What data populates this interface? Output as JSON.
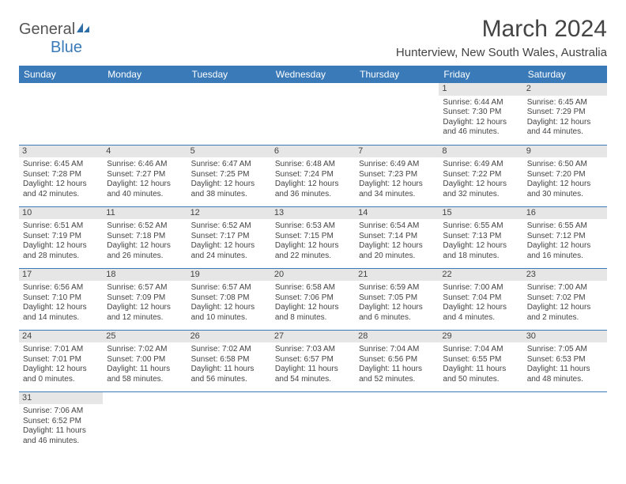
{
  "logo": {
    "part1": "General",
    "part2": "Blue"
  },
  "title": "March 2024",
  "location": "Hunterview, New South Wales, Australia",
  "colors": {
    "header_bg": "#3a7ab8",
    "header_fg": "#ffffff",
    "daynum_bg": "#e6e6e6",
    "border": "#3a7ab8"
  },
  "day_headers": [
    "Sunday",
    "Monday",
    "Tuesday",
    "Wednesday",
    "Thursday",
    "Friday",
    "Saturday"
  ],
  "weeks": [
    [
      null,
      null,
      null,
      null,
      null,
      {
        "num": "1",
        "sunrise": "Sunrise: 6:44 AM",
        "sunset": "Sunset: 7:30 PM",
        "daylight": "Daylight: 12 hours and 46 minutes."
      },
      {
        "num": "2",
        "sunrise": "Sunrise: 6:45 AM",
        "sunset": "Sunset: 7:29 PM",
        "daylight": "Daylight: 12 hours and 44 minutes."
      }
    ],
    [
      {
        "num": "3",
        "sunrise": "Sunrise: 6:45 AM",
        "sunset": "Sunset: 7:28 PM",
        "daylight": "Daylight: 12 hours and 42 minutes."
      },
      {
        "num": "4",
        "sunrise": "Sunrise: 6:46 AM",
        "sunset": "Sunset: 7:27 PM",
        "daylight": "Daylight: 12 hours and 40 minutes."
      },
      {
        "num": "5",
        "sunrise": "Sunrise: 6:47 AM",
        "sunset": "Sunset: 7:25 PM",
        "daylight": "Daylight: 12 hours and 38 minutes."
      },
      {
        "num": "6",
        "sunrise": "Sunrise: 6:48 AM",
        "sunset": "Sunset: 7:24 PM",
        "daylight": "Daylight: 12 hours and 36 minutes."
      },
      {
        "num": "7",
        "sunrise": "Sunrise: 6:49 AM",
        "sunset": "Sunset: 7:23 PM",
        "daylight": "Daylight: 12 hours and 34 minutes."
      },
      {
        "num": "8",
        "sunrise": "Sunrise: 6:49 AM",
        "sunset": "Sunset: 7:22 PM",
        "daylight": "Daylight: 12 hours and 32 minutes."
      },
      {
        "num": "9",
        "sunrise": "Sunrise: 6:50 AM",
        "sunset": "Sunset: 7:20 PM",
        "daylight": "Daylight: 12 hours and 30 minutes."
      }
    ],
    [
      {
        "num": "10",
        "sunrise": "Sunrise: 6:51 AM",
        "sunset": "Sunset: 7:19 PM",
        "daylight": "Daylight: 12 hours and 28 minutes."
      },
      {
        "num": "11",
        "sunrise": "Sunrise: 6:52 AM",
        "sunset": "Sunset: 7:18 PM",
        "daylight": "Daylight: 12 hours and 26 minutes."
      },
      {
        "num": "12",
        "sunrise": "Sunrise: 6:52 AM",
        "sunset": "Sunset: 7:17 PM",
        "daylight": "Daylight: 12 hours and 24 minutes."
      },
      {
        "num": "13",
        "sunrise": "Sunrise: 6:53 AM",
        "sunset": "Sunset: 7:15 PM",
        "daylight": "Daylight: 12 hours and 22 minutes."
      },
      {
        "num": "14",
        "sunrise": "Sunrise: 6:54 AM",
        "sunset": "Sunset: 7:14 PM",
        "daylight": "Daylight: 12 hours and 20 minutes."
      },
      {
        "num": "15",
        "sunrise": "Sunrise: 6:55 AM",
        "sunset": "Sunset: 7:13 PM",
        "daylight": "Daylight: 12 hours and 18 minutes."
      },
      {
        "num": "16",
        "sunrise": "Sunrise: 6:55 AM",
        "sunset": "Sunset: 7:12 PM",
        "daylight": "Daylight: 12 hours and 16 minutes."
      }
    ],
    [
      {
        "num": "17",
        "sunrise": "Sunrise: 6:56 AM",
        "sunset": "Sunset: 7:10 PM",
        "daylight": "Daylight: 12 hours and 14 minutes."
      },
      {
        "num": "18",
        "sunrise": "Sunrise: 6:57 AM",
        "sunset": "Sunset: 7:09 PM",
        "daylight": "Daylight: 12 hours and 12 minutes."
      },
      {
        "num": "19",
        "sunrise": "Sunrise: 6:57 AM",
        "sunset": "Sunset: 7:08 PM",
        "daylight": "Daylight: 12 hours and 10 minutes."
      },
      {
        "num": "20",
        "sunrise": "Sunrise: 6:58 AM",
        "sunset": "Sunset: 7:06 PM",
        "daylight": "Daylight: 12 hours and 8 minutes."
      },
      {
        "num": "21",
        "sunrise": "Sunrise: 6:59 AM",
        "sunset": "Sunset: 7:05 PM",
        "daylight": "Daylight: 12 hours and 6 minutes."
      },
      {
        "num": "22",
        "sunrise": "Sunrise: 7:00 AM",
        "sunset": "Sunset: 7:04 PM",
        "daylight": "Daylight: 12 hours and 4 minutes."
      },
      {
        "num": "23",
        "sunrise": "Sunrise: 7:00 AM",
        "sunset": "Sunset: 7:02 PM",
        "daylight": "Daylight: 12 hours and 2 minutes."
      }
    ],
    [
      {
        "num": "24",
        "sunrise": "Sunrise: 7:01 AM",
        "sunset": "Sunset: 7:01 PM",
        "daylight": "Daylight: 12 hours and 0 minutes."
      },
      {
        "num": "25",
        "sunrise": "Sunrise: 7:02 AM",
        "sunset": "Sunset: 7:00 PM",
        "daylight": "Daylight: 11 hours and 58 minutes."
      },
      {
        "num": "26",
        "sunrise": "Sunrise: 7:02 AM",
        "sunset": "Sunset: 6:58 PM",
        "daylight": "Daylight: 11 hours and 56 minutes."
      },
      {
        "num": "27",
        "sunrise": "Sunrise: 7:03 AM",
        "sunset": "Sunset: 6:57 PM",
        "daylight": "Daylight: 11 hours and 54 minutes."
      },
      {
        "num": "28",
        "sunrise": "Sunrise: 7:04 AM",
        "sunset": "Sunset: 6:56 PM",
        "daylight": "Daylight: 11 hours and 52 minutes."
      },
      {
        "num": "29",
        "sunrise": "Sunrise: 7:04 AM",
        "sunset": "Sunset: 6:55 PM",
        "daylight": "Daylight: 11 hours and 50 minutes."
      },
      {
        "num": "30",
        "sunrise": "Sunrise: 7:05 AM",
        "sunset": "Sunset: 6:53 PM",
        "daylight": "Daylight: 11 hours and 48 minutes."
      }
    ],
    [
      {
        "num": "31",
        "sunrise": "Sunrise: 7:06 AM",
        "sunset": "Sunset: 6:52 PM",
        "daylight": "Daylight: 11 hours and 46 minutes."
      },
      null,
      null,
      null,
      null,
      null,
      null
    ]
  ]
}
